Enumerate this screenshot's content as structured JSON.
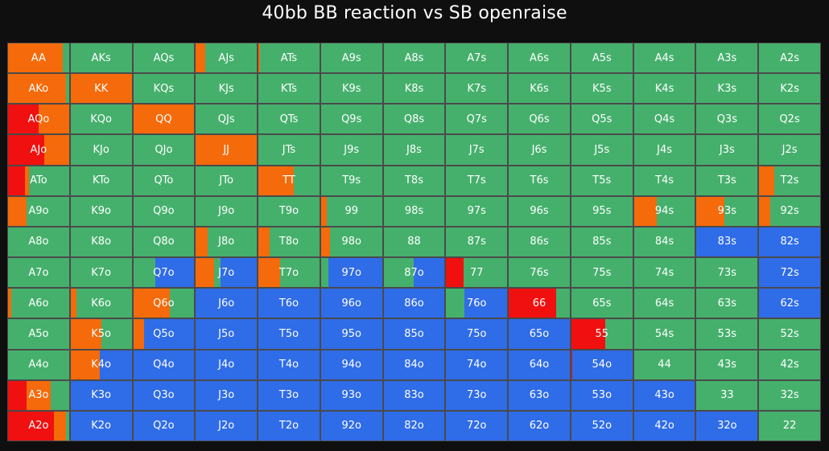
{
  "title": "40bb BB reaction vs SB openraise",
  "colors": {
    "raise": "#f56a0a",
    "allin": "#f01010",
    "call": "#45b06c",
    "fold": "#2f6ce8"
  },
  "chart_data": {
    "type": "heatmap",
    "title": "40bb BB reaction vs SB openraise",
    "actions": [
      "allin",
      "raise",
      "call",
      "fold"
    ],
    "ranks": [
      "A",
      "K",
      "Q",
      "J",
      "T",
      "9",
      "8",
      "7",
      "6",
      "5",
      "4",
      "3",
      "2"
    ],
    "rows": [
      [
        {
          "hand": "AA",
          "mix": {
            "raise": 0.9,
            "call": 0.1
          }
        },
        {
          "hand": "AKs",
          "mix": {
            "call": 1
          }
        },
        {
          "hand": "AQs",
          "mix": {
            "call": 1
          }
        },
        {
          "hand": "AJs",
          "mix": {
            "raise": 0.15,
            "call": 0.85
          }
        },
        {
          "hand": "ATs",
          "mix": {
            "raise": 0.02,
            "call": 0.98
          }
        },
        {
          "hand": "A9s",
          "mix": {
            "call": 1
          }
        },
        {
          "hand": "A8s",
          "mix": {
            "call": 1
          }
        },
        {
          "hand": "A7s",
          "mix": {
            "call": 1
          }
        },
        {
          "hand": "A6s",
          "mix": {
            "call": 1
          }
        },
        {
          "hand": "A5s",
          "mix": {
            "call": 1
          }
        },
        {
          "hand": "A4s",
          "mix": {
            "call": 1
          }
        },
        {
          "hand": "A3s",
          "mix": {
            "call": 1
          }
        },
        {
          "hand": "A2s",
          "mix": {
            "call": 1
          }
        }
      ],
      [
        {
          "hand": "AKo",
          "mix": {
            "raise": 0.95,
            "call": 0.05
          }
        },
        {
          "hand": "KK",
          "mix": {
            "raise": 1
          }
        },
        {
          "hand": "KQs",
          "mix": {
            "call": 1
          }
        },
        {
          "hand": "KJs",
          "mix": {
            "call": 1
          }
        },
        {
          "hand": "KTs",
          "mix": {
            "call": 1
          }
        },
        {
          "hand": "K9s",
          "mix": {
            "call": 1
          }
        },
        {
          "hand": "K8s",
          "mix": {
            "call": 1
          }
        },
        {
          "hand": "K7s",
          "mix": {
            "call": 1
          }
        },
        {
          "hand": "K6s",
          "mix": {
            "call": 1
          }
        },
        {
          "hand": "K5s",
          "mix": {
            "call": 1
          }
        },
        {
          "hand": "K4s",
          "mix": {
            "call": 1
          }
        },
        {
          "hand": "K3s",
          "mix": {
            "call": 1
          }
        },
        {
          "hand": "K2s",
          "mix": {
            "call": 1
          }
        }
      ],
      [
        {
          "hand": "AQo",
          "mix": {
            "allin": 0.5,
            "raise": 0.5
          }
        },
        {
          "hand": "KQo",
          "mix": {
            "call": 1
          }
        },
        {
          "hand": "QQ",
          "mix": {
            "raise": 1
          }
        },
        {
          "hand": "QJs",
          "mix": {
            "call": 1
          }
        },
        {
          "hand": "QTs",
          "mix": {
            "call": 1
          }
        },
        {
          "hand": "Q9s",
          "mix": {
            "call": 1
          }
        },
        {
          "hand": "Q8s",
          "mix": {
            "call": 1
          }
        },
        {
          "hand": "Q7s",
          "mix": {
            "call": 1
          }
        },
        {
          "hand": "Q6s",
          "mix": {
            "call": 1
          }
        },
        {
          "hand": "Q5s",
          "mix": {
            "call": 1
          }
        },
        {
          "hand": "Q4s",
          "mix": {
            "call": 1
          }
        },
        {
          "hand": "Q3s",
          "mix": {
            "call": 1
          }
        },
        {
          "hand": "Q2s",
          "mix": {
            "call": 1
          }
        }
      ],
      [
        {
          "hand": "AJo",
          "mix": {
            "allin": 0.6,
            "raise": 0.4
          }
        },
        {
          "hand": "KJo",
          "mix": {
            "call": 1
          }
        },
        {
          "hand": "QJo",
          "mix": {
            "call": 1
          }
        },
        {
          "hand": "JJ",
          "mix": {
            "raise": 1
          }
        },
        {
          "hand": "JTs",
          "mix": {
            "call": 1
          }
        },
        {
          "hand": "J9s",
          "mix": {
            "call": 1
          }
        },
        {
          "hand": "J8s",
          "mix": {
            "call": 1
          }
        },
        {
          "hand": "J7s",
          "mix": {
            "call": 1
          }
        },
        {
          "hand": "J6s",
          "mix": {
            "call": 1
          }
        },
        {
          "hand": "J5s",
          "mix": {
            "call": 1
          }
        },
        {
          "hand": "J4s",
          "mix": {
            "call": 1
          }
        },
        {
          "hand": "J3s",
          "mix": {
            "call": 1
          }
        },
        {
          "hand": "J2s",
          "mix": {
            "call": 1
          }
        }
      ],
      [
        {
          "hand": "ATo",
          "mix": {
            "allin": 0.28,
            "raise": 0.06,
            "call": 0.66
          }
        },
        {
          "hand": "KTo",
          "mix": {
            "call": 1
          }
        },
        {
          "hand": "QTo",
          "mix": {
            "call": 1
          }
        },
        {
          "hand": "JTo",
          "mix": {
            "call": 1
          }
        },
        {
          "hand": "TT",
          "mix": {
            "raise": 0.58,
            "call": 0.42
          }
        },
        {
          "hand": "T9s",
          "mix": {
            "call": 1
          }
        },
        {
          "hand": "T8s",
          "mix": {
            "call": 1
          }
        },
        {
          "hand": "T7s",
          "mix": {
            "call": 1
          }
        },
        {
          "hand": "T6s",
          "mix": {
            "call": 1
          }
        },
        {
          "hand": "T5s",
          "mix": {
            "call": 1
          }
        },
        {
          "hand": "T4s",
          "mix": {
            "call": 1
          }
        },
        {
          "hand": "T3s",
          "mix": {
            "call": 1
          }
        },
        {
          "hand": "T2s",
          "mix": {
            "raise": 0.25,
            "call": 0.75
          }
        }
      ],
      [
        {
          "hand": "A9o",
          "mix": {
            "raise": 0.3,
            "call": 0.7
          }
        },
        {
          "hand": "K9o",
          "mix": {
            "call": 1
          }
        },
        {
          "hand": "Q9o",
          "mix": {
            "call": 1
          }
        },
        {
          "hand": "J9o",
          "mix": {
            "call": 1
          }
        },
        {
          "hand": "T9o",
          "mix": {
            "call": 1
          }
        },
        {
          "hand": "99",
          "mix": {
            "raise": 0.1,
            "call": 0.9
          }
        },
        {
          "hand": "98s",
          "mix": {
            "call": 1
          }
        },
        {
          "hand": "97s",
          "mix": {
            "call": 1
          }
        },
        {
          "hand": "96s",
          "mix": {
            "call": 1
          }
        },
        {
          "hand": "95s",
          "mix": {
            "call": 1
          }
        },
        {
          "hand": "94s",
          "mix": {
            "raise": 0.38,
            "call": 0.62
          }
        },
        {
          "hand": "93s",
          "mix": {
            "raise": 0.45,
            "call": 0.55
          }
        },
        {
          "hand": "92s",
          "mix": {
            "raise": 0.18,
            "call": 0.82
          }
        }
      ],
      [
        {
          "hand": "A8o",
          "mix": {
            "call": 1
          }
        },
        {
          "hand": "K8o",
          "mix": {
            "call": 1
          }
        },
        {
          "hand": "Q8o",
          "mix": {
            "call": 1
          }
        },
        {
          "hand": "J8o",
          "mix": {
            "raise": 0.2,
            "call": 0.8
          }
        },
        {
          "hand": "T8o",
          "mix": {
            "raise": 0.18,
            "call": 0.82
          }
        },
        {
          "hand": "98o",
          "mix": {
            "raise": 0.15,
            "call": 0.85
          }
        },
        {
          "hand": "88",
          "mix": {
            "call": 1
          }
        },
        {
          "hand": "87s",
          "mix": {
            "call": 1
          }
        },
        {
          "hand": "86s",
          "mix": {
            "call": 1
          }
        },
        {
          "hand": "85s",
          "mix": {
            "call": 1
          }
        },
        {
          "hand": "84s",
          "mix": {
            "call": 1
          }
        },
        {
          "hand": "83s",
          "mix": {
            "fold": 1
          }
        },
        {
          "hand": "82s",
          "mix": {
            "fold": 1
          }
        }
      ],
      [
        {
          "hand": "A7o",
          "mix": {
            "call": 1
          }
        },
        {
          "hand": "K7o",
          "mix": {
            "call": 1
          }
        },
        {
          "hand": "Q7o",
          "mix": {
            "call": 0.36,
            "fold": 0.64
          }
        },
        {
          "hand": "J7o",
          "mix": {
            "raise": 0.3,
            "call": 0.1,
            "fold": 0.6
          }
        },
        {
          "hand": "T7o",
          "mix": {
            "raise": 0.35,
            "call": 0.65
          }
        },
        {
          "hand": "97o",
          "mix": {
            "call": 0.12,
            "fold": 0.88
          }
        },
        {
          "hand": "87o",
          "mix": {
            "call": 0.5,
            "fold": 0.5
          }
        },
        {
          "hand": "77",
          "mix": {
            "allin": 0.28,
            "call": 0.72
          }
        },
        {
          "hand": "76s",
          "mix": {
            "call": 1
          }
        },
        {
          "hand": "75s",
          "mix": {
            "call": 1
          }
        },
        {
          "hand": "74s",
          "mix": {
            "call": 1
          }
        },
        {
          "hand": "73s",
          "mix": {
            "call": 1
          }
        },
        {
          "hand": "72s",
          "mix": {
            "fold": 1
          }
        }
      ],
      [
        {
          "hand": "A6o",
          "mix": {
            "raise": 0.05,
            "call": 0.95
          }
        },
        {
          "hand": "K6o",
          "mix": {
            "raise": 0.1,
            "call": 0.9
          }
        },
        {
          "hand": "Q6o",
          "mix": {
            "raise": 0.6,
            "call": 0.4
          }
        },
        {
          "hand": "J6o",
          "mix": {
            "fold": 1
          }
        },
        {
          "hand": "T6o",
          "mix": {
            "fold": 1
          }
        },
        {
          "hand": "96o",
          "mix": {
            "fold": 1
          }
        },
        {
          "hand": "86o",
          "mix": {
            "fold": 1
          }
        },
        {
          "hand": "76o",
          "mix": {
            "call": 0.3,
            "fold": 0.7
          }
        },
        {
          "hand": "66",
          "mix": {
            "allin": 0.78,
            "call": 0.22
          }
        },
        {
          "hand": "65s",
          "mix": {
            "call": 1
          }
        },
        {
          "hand": "64s",
          "mix": {
            "call": 1
          }
        },
        {
          "hand": "63s",
          "mix": {
            "call": 1
          }
        },
        {
          "hand": "62s",
          "mix": {
            "fold": 1
          }
        }
      ],
      [
        {
          "hand": "A5o",
          "mix": {
            "call": 1
          }
        },
        {
          "hand": "K5o",
          "mix": {
            "raise": 0.5,
            "call": 0.5
          }
        },
        {
          "hand": "Q5o",
          "mix": {
            "raise": 0.18,
            "fold": 0.82
          }
        },
        {
          "hand": "J5o",
          "mix": {
            "fold": 1
          }
        },
        {
          "hand": "T5o",
          "mix": {
            "fold": 1
          }
        },
        {
          "hand": "95o",
          "mix": {
            "fold": 1
          }
        },
        {
          "hand": "85o",
          "mix": {
            "fold": 1
          }
        },
        {
          "hand": "75o",
          "mix": {
            "fold": 1
          }
        },
        {
          "hand": "65o",
          "mix": {
            "fold": 1
          }
        },
        {
          "hand": "55",
          "mix": {
            "allin": 0.55,
            "call": 0.45
          }
        },
        {
          "hand": "54s",
          "mix": {
            "call": 1
          }
        },
        {
          "hand": "53s",
          "mix": {
            "call": 1
          }
        },
        {
          "hand": "52s",
          "mix": {
            "call": 1
          }
        }
      ],
      [
        {
          "hand": "A4o",
          "mix": {
            "call": 1
          }
        },
        {
          "hand": "K4o",
          "mix": {
            "raise": 0.48,
            "fold": 0.52
          }
        },
        {
          "hand": "Q4o",
          "mix": {
            "fold": 1
          }
        },
        {
          "hand": "J4o",
          "mix": {
            "fold": 1
          }
        },
        {
          "hand": "T4o",
          "mix": {
            "fold": 1
          }
        },
        {
          "hand": "94o",
          "mix": {
            "fold": 1
          }
        },
        {
          "hand": "84o",
          "mix": {
            "fold": 1
          }
        },
        {
          "hand": "74o",
          "mix": {
            "fold": 1
          }
        },
        {
          "hand": "64o",
          "mix": {
            "fold": 1
          }
        },
        {
          "hand": "54o",
          "mix": {
            "fold": 0.98,
            "allin": 0.02
          }
        },
        {
          "hand": "44",
          "mix": {
            "call": 1
          }
        },
        {
          "hand": "43s",
          "mix": {
            "call": 1
          }
        },
        {
          "hand": "42s",
          "mix": {
            "call": 1
          }
        }
      ],
      [
        {
          "hand": "A3o",
          "mix": {
            "allin": 0.3,
            "raise": 0.4,
            "call": 0.3
          }
        },
        {
          "hand": "K3o",
          "mix": {
            "fold": 1
          }
        },
        {
          "hand": "Q3o",
          "mix": {
            "fold": 1
          }
        },
        {
          "hand": "J3o",
          "mix": {
            "fold": 1
          }
        },
        {
          "hand": "T3o",
          "mix": {
            "fold": 1
          }
        },
        {
          "hand": "93o",
          "mix": {
            "fold": 1
          }
        },
        {
          "hand": "83o",
          "mix": {
            "fold": 1
          }
        },
        {
          "hand": "73o",
          "mix": {
            "fold": 1
          }
        },
        {
          "hand": "63o",
          "mix": {
            "fold": 1
          }
        },
        {
          "hand": "53o",
          "mix": {
            "fold": 1
          }
        },
        {
          "hand": "43o",
          "mix": {
            "fold": 1
          }
        },
        {
          "hand": "33",
          "mix": {
            "call": 1
          }
        },
        {
          "hand": "32s",
          "mix": {
            "call": 1
          }
        }
      ],
      [
        {
          "hand": "A2o",
          "mix": {
            "allin": 0.75,
            "raise": 0.2,
            "call": 0.05
          }
        },
        {
          "hand": "K2o",
          "mix": {
            "fold": 1
          }
        },
        {
          "hand": "Q2o",
          "mix": {
            "fold": 1
          }
        },
        {
          "hand": "J2o",
          "mix": {
            "fold": 1
          }
        },
        {
          "hand": "T2o",
          "mix": {
            "fold": 1
          }
        },
        {
          "hand": "92o",
          "mix": {
            "fold": 1
          }
        },
        {
          "hand": "82o",
          "mix": {
            "fold": 1
          }
        },
        {
          "hand": "72o",
          "mix": {
            "fold": 1
          }
        },
        {
          "hand": "62o",
          "mix": {
            "fold": 1
          }
        },
        {
          "hand": "52o",
          "mix": {
            "fold": 1
          }
        },
        {
          "hand": "42o",
          "mix": {
            "fold": 1
          }
        },
        {
          "hand": "32o",
          "mix": {
            "fold": 1
          }
        },
        {
          "hand": "22",
          "mix": {
            "call": 1
          }
        }
      ]
    ]
  }
}
